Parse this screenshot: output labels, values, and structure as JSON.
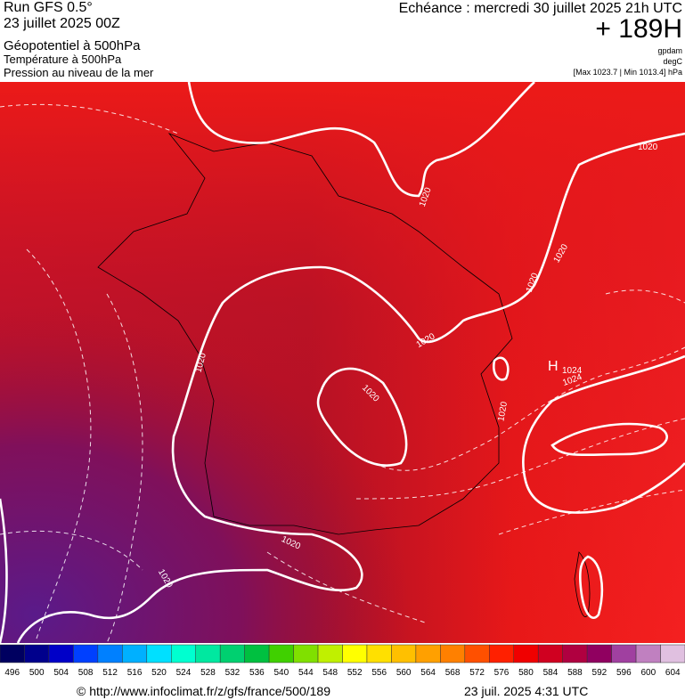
{
  "header": {
    "run": "Run GFS 0.5°",
    "date": "23 juillet 2025 00Z",
    "field1": "Géopotentiel à 500hPa",
    "field2": "Température à 500hPa",
    "field3": "Pression au niveau de la mer",
    "valid": "Echéance : mercredi 30 juillet 2025 21h UTC",
    "lead": "+ 189H",
    "unit1": "gpdam",
    "unit2": "degC",
    "range": "[Max 1023.7 | Min 1013.4] hPa"
  },
  "map": {
    "labels": [
      "1020",
      "1020",
      "1020",
      "1020",
      "1020",
      "1020",
      "1020",
      "1020",
      "1020",
      "1020",
      "H",
      "1024",
      "1024"
    ]
  },
  "colorbar": {
    "values": [
      496,
      500,
      504,
      508,
      512,
      516,
      520,
      524,
      528,
      532,
      536,
      540,
      544,
      548,
      552,
      556,
      560,
      564,
      568,
      572,
      576,
      580,
      584,
      588,
      592,
      596,
      600,
      604
    ],
    "colors": [
      "#000060",
      "#00008c",
      "#0000c8",
      "#0040ff",
      "#0080ff",
      "#00b0ff",
      "#00e0ff",
      "#00ffd0",
      "#00e8a0",
      "#00d070",
      "#00c040",
      "#40d000",
      "#80e000",
      "#c0f000",
      "#ffff00",
      "#ffe000",
      "#ffc000",
      "#ffa000",
      "#ff8000",
      "#ff5000",
      "#ff2000",
      "#f00000",
      "#d00020",
      "#b00040",
      "#900060",
      "#a040a0",
      "#c080c0",
      "#e0c0e0"
    ]
  },
  "footer": {
    "url": "© http://www.infoclimat.fr/z/gfs/france/500/189",
    "timestamp": "23 juil. 2025  4:31 UTC"
  }
}
